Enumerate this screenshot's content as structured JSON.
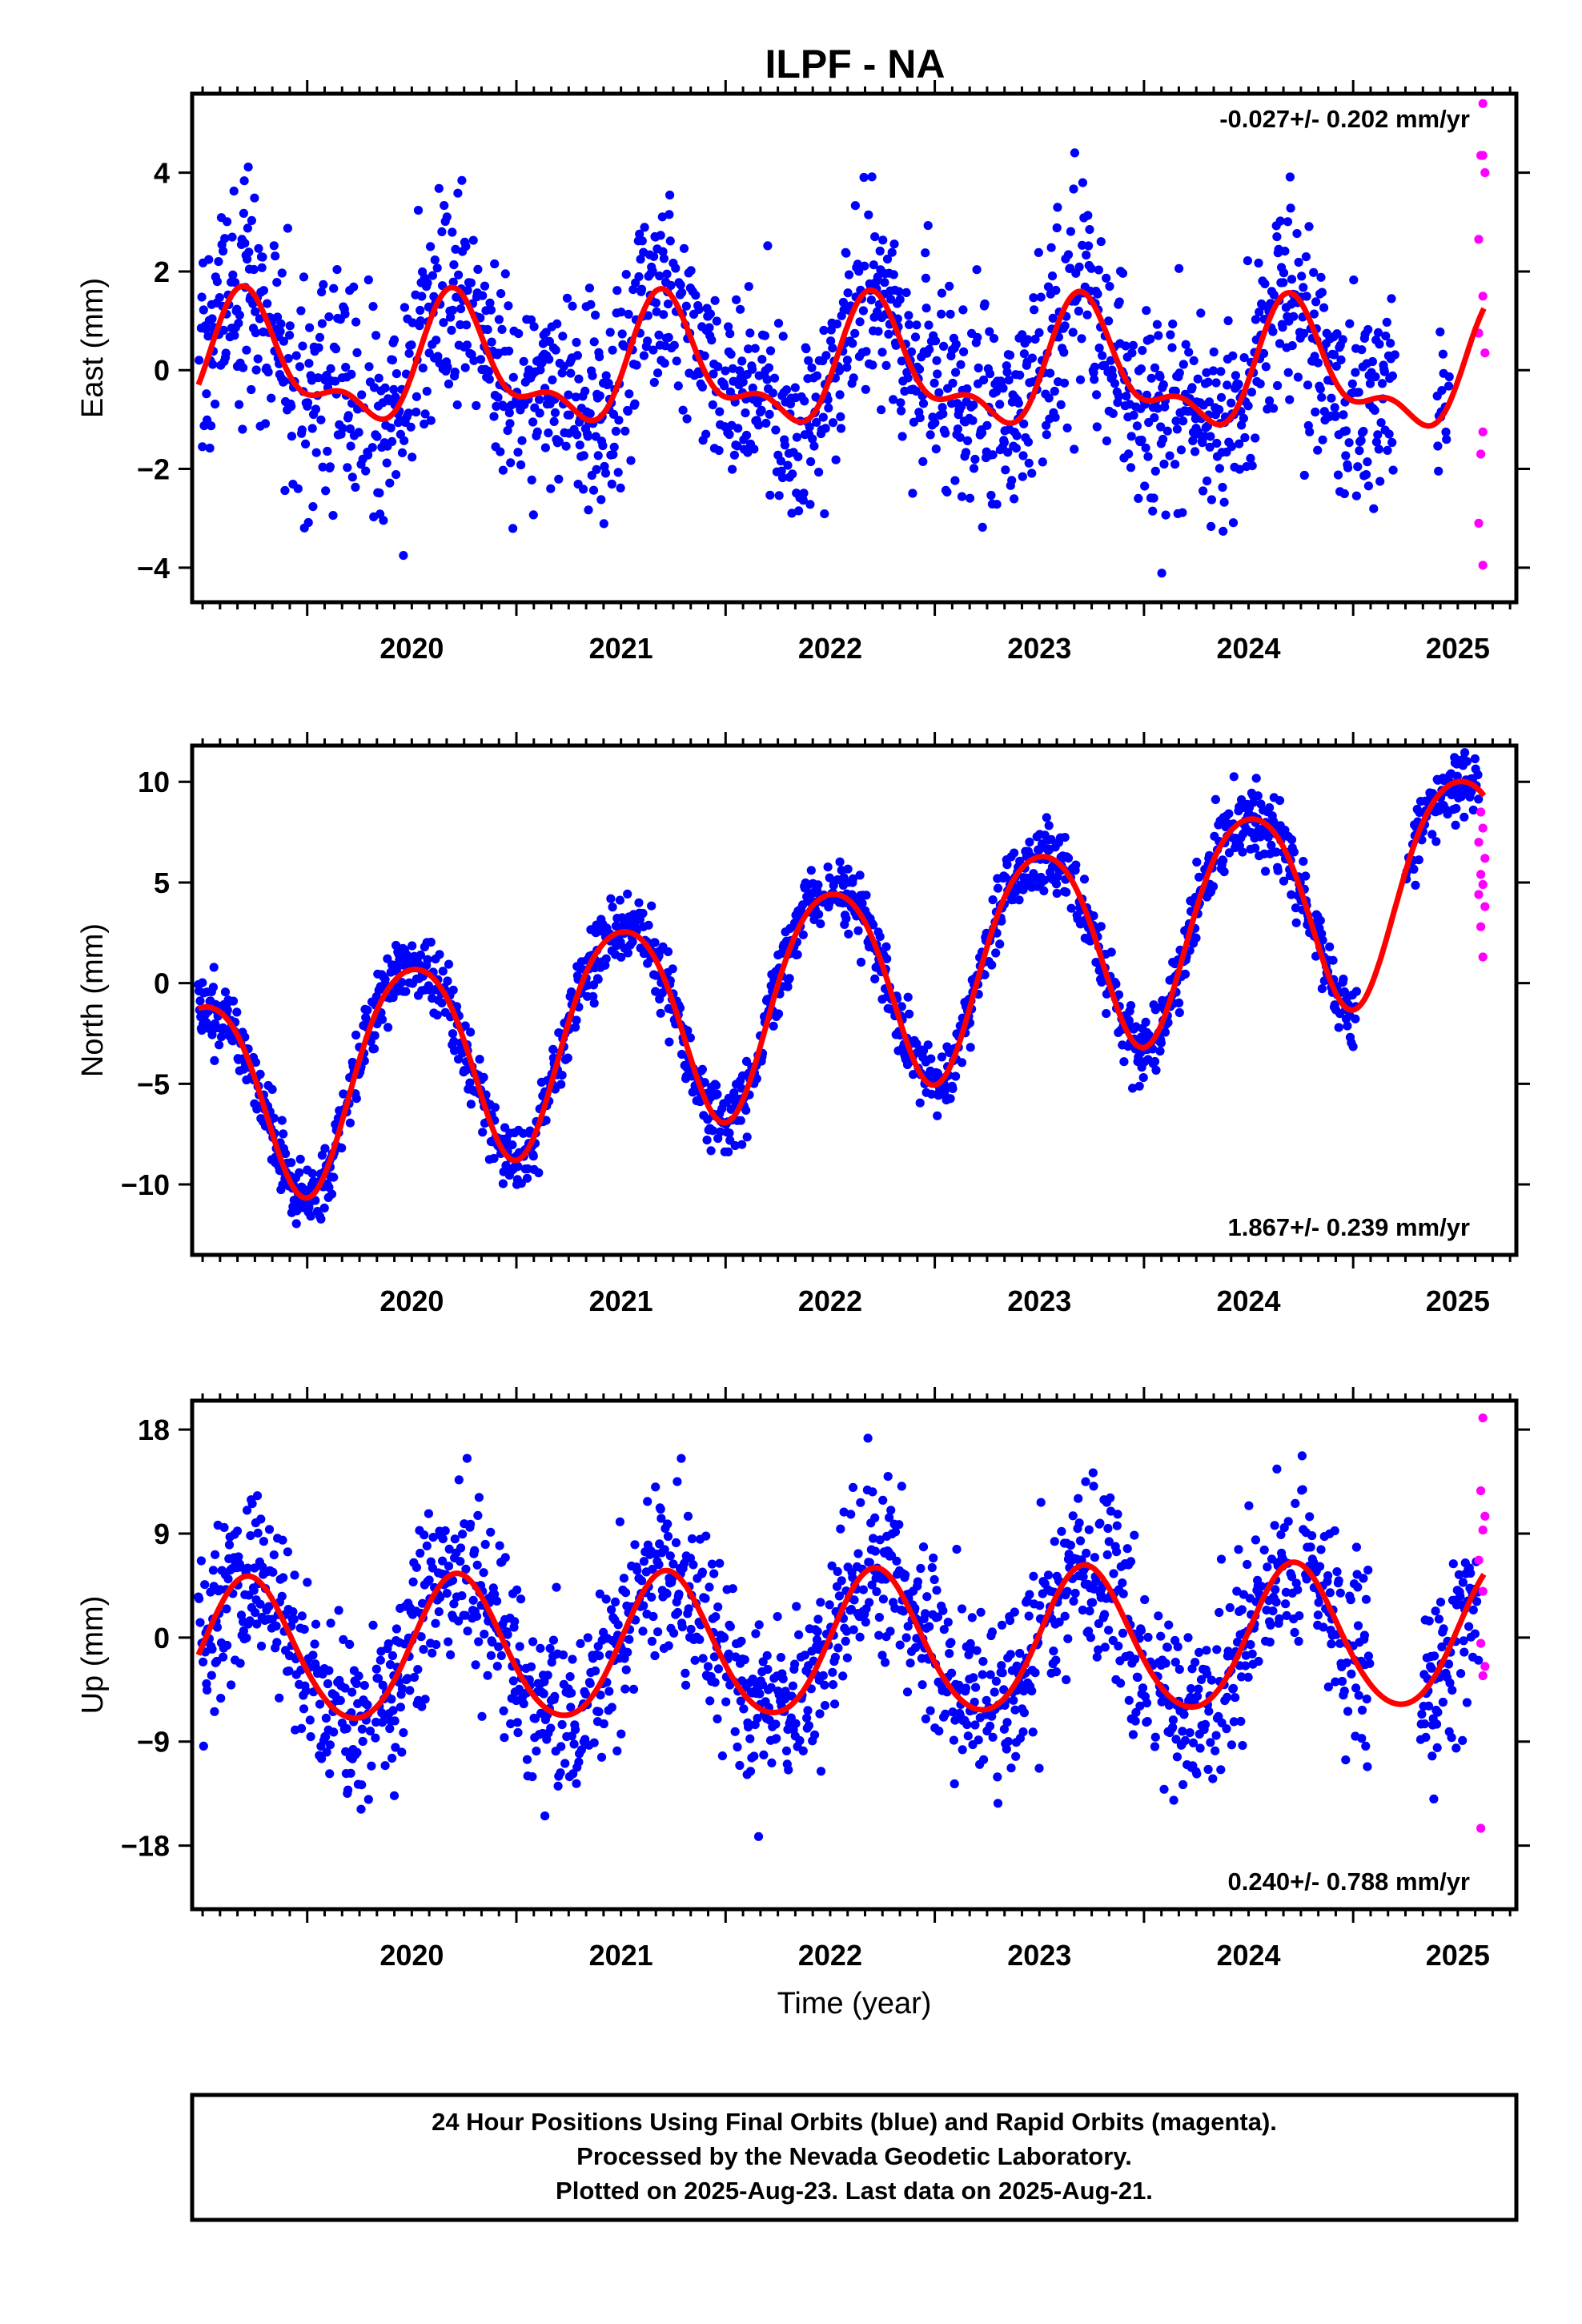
{
  "title": "ILPF - NA",
  "caption": {
    "lines": [
      "24 Hour Positions Using Final Orbits (blue) and Rapid Orbits (magenta).",
      "Processed by the Nevada Geodetic Laboratory.",
      "Plotted on 2025-Aug-23. Last data on 2025-Aug-21."
    ]
  },
  "colors": {
    "final_orbits": "#0000ff",
    "rapid_orbits": "#ff00ff",
    "model_fit": "#ff0000",
    "axes": "#000000"
  },
  "chart_data": [
    {
      "type": "scatter",
      "name": "east",
      "ylabel": "East (mm)",
      "xlabel": "",
      "rate_text": "-0.027+/- 0.202 mm/yr",
      "rate_position": "top-right",
      "xlim": [
        2019.45,
        2025.78
      ],
      "ylim": [
        -4.7,
        5.6
      ],
      "x_ticks": [
        2020,
        2021,
        2022,
        2023,
        2024,
        2025
      ],
      "y_ticks": [
        -4,
        -2,
        0,
        2,
        4
      ],
      "y_tick_labels": [
        "−4",
        "−2",
        "0",
        "2",
        "4"
      ],
      "grid": false,
      "data_range": [
        2019.48,
        2025.46
      ],
      "model": {
        "offset": 0.0,
        "trend": -0.027,
        "ref_year": 2022.5,
        "annual_amp": 1.1,
        "annual_phase_peak": 0.72,
        "semiannual_amp": 0.55,
        "semiannual_phase_peak": 0.18,
        "noise_sd": 1.05
      },
      "gaps": [
        [
          2025.2,
          2025.4
        ]
      ],
      "rapid_points": [
        [
          2025.62,
          5.4
        ],
        [
          2025.61,
          4.35
        ],
        [
          2025.62,
          4.35
        ],
        [
          2025.63,
          4.0
        ],
        [
          2025.6,
          2.65
        ],
        [
          2025.62,
          1.5
        ],
        [
          2025.6,
          0.75
        ],
        [
          2025.63,
          0.35
        ],
        [
          2025.62,
          -1.25
        ],
        [
          2025.61,
          -1.7
        ],
        [
          2025.6,
          -3.1
        ],
        [
          2025.62,
          -3.95
        ]
      ]
    },
    {
      "type": "scatter",
      "name": "north",
      "ylabel": "North (mm)",
      "xlabel": "",
      "rate_text": "1.867+/- 0.239 mm/yr",
      "rate_position": "bottom-right",
      "xlim": [
        2019.45,
        2025.78
      ],
      "ylim": [
        -13.5,
        11.8
      ],
      "x_ticks": [
        2020,
        2021,
        2022,
        2023,
        2024,
        2025
      ],
      "y_ticks": [
        -10,
        -5,
        0,
        5,
        10
      ],
      "y_tick_labels": [
        "−10",
        "−5",
        "0",
        "5",
        "10"
      ],
      "grid": false,
      "data_range": [
        2019.48,
        2025.6
      ],
      "model": {
        "offset": -0.2,
        "trend": 1.867,
        "ref_year": 2022.5,
        "annual_amp": 5.2,
        "annual_phase_peak": 0.5,
        "semiannual_amp": 0.6,
        "semiannual_phase_peak": 0.25,
        "noise_sd": 0.85
      },
      "gaps": [
        [
          2025.02,
          2025.25
        ]
      ],
      "rapid_points": [
        [
          2025.61,
          8.5
        ],
        [
          2025.62,
          7.7
        ],
        [
          2025.6,
          7.0
        ],
        [
          2025.63,
          6.2
        ],
        [
          2025.61,
          5.4
        ],
        [
          2025.62,
          4.9
        ],
        [
          2025.6,
          4.4
        ],
        [
          2025.63,
          3.8
        ],
        [
          2025.61,
          2.8
        ],
        [
          2025.62,
          1.3
        ]
      ]
    },
    {
      "type": "scatter",
      "name": "up",
      "ylabel": "Up (mm)",
      "xlabel": "Time (year)",
      "rate_text": "0.240+/- 0.788 mm/yr",
      "rate_position": "bottom-right",
      "xlim": [
        2019.45,
        2025.78
      ],
      "ylim": [
        -23.5,
        20.5
      ],
      "x_ticks": [
        2020,
        2021,
        2022,
        2023,
        2024,
        2025
      ],
      "y_ticks": [
        -18,
        -9,
        0,
        9,
        18
      ],
      "y_tick_labels": [
        "−18",
        "−9",
        "0",
        "9",
        "18"
      ],
      "grid": false,
      "data_range": [
        2019.48,
        2025.6
      ],
      "model": {
        "offset": -0.7,
        "trend": 0.24,
        "ref_year": 2022.5,
        "annual_amp": 6.2,
        "annual_phase_peak": 0.72,
        "semiannual_amp": 0.5,
        "semiannual_phase_peak": 0.2,
        "noise_sd": 3.8
      },
      "gaps": [
        [
          2025.08,
          2025.32
        ]
      ],
      "rapid_points": [
        [
          2025.62,
          19.0
        ],
        [
          2025.61,
          12.7
        ],
        [
          2025.63,
          10.5
        ],
        [
          2025.62,
          9.3
        ],
        [
          2025.6,
          6.7
        ],
        [
          2025.62,
          4.0
        ],
        [
          2025.61,
          -0.5
        ],
        [
          2025.63,
          -2.5
        ],
        [
          2025.62,
          -3.3
        ],
        [
          2025.61,
          -16.5
        ]
      ]
    }
  ]
}
